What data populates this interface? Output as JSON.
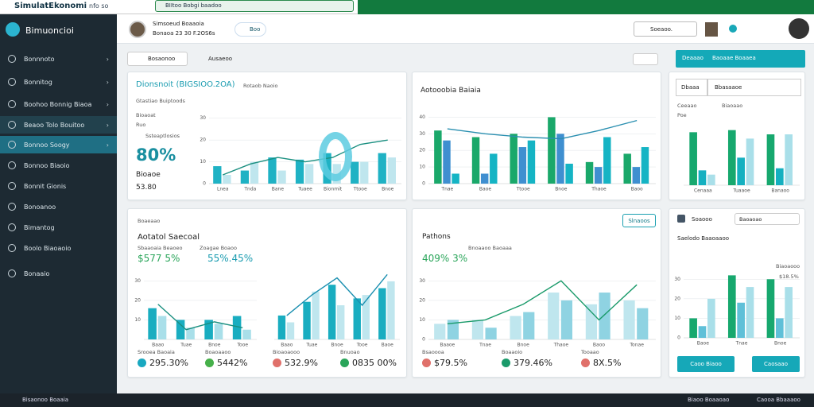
{
  "browser": {
    "title": "SimulatEkonomi",
    "extra": "nfo so",
    "tab": "BIItoo Bobgi baadoo"
  },
  "sidebar": {
    "logo": "Bimuoncioi",
    "items": [
      "Bonnnoto",
      "Bonnitog",
      "Boohoo Bonnig Biaoa",
      "Beaoo Tolo Bouitoo",
      "Bonnoo Soogy",
      "Bonnoo Biaoio",
      "Bonnit Gionis",
      "Bonoanoo",
      "Bimantog",
      "Boolo Biaoaoio",
      "Bonaaio"
    ],
    "footer": "Bisaonoo Boaaia"
  },
  "header": {
    "name": "Simsoeud Boaaoia",
    "sub": "Bonaoa 23 30 F.2OS6s",
    "search": "Boo",
    "search2": "Soeaoo."
  },
  "filter": {
    "search": "Bosaonoo",
    "label": "Ausaeoo"
  },
  "card1": {
    "title": "Dionsnoit (BIGSIOO.2OA)",
    "subtitle": "Rotaob Naoio",
    "l1": "Gtastiao Buiptoods",
    "l2": "Bioaoat",
    "l3": "Ruo",
    "l4": "Ssteaptlosios",
    "big": "80%",
    "l5": "Bioaoe",
    "l6": "53.80",
    "chart": {
      "ylim": [
        0,
        35
      ],
      "yticks": [
        0,
        10,
        20,
        30
      ],
      "categories": [
        "Lnea",
        "Tnda",
        "Bane",
        "Tuaee",
        "Bionmit",
        "Ttooe",
        "Bnoe"
      ],
      "series": [
        {
          "color": "#1fb2c4",
          "values": [
            8,
            6,
            12,
            11,
            14,
            10,
            14
          ]
        },
        {
          "color": "#bfe6ee",
          "values": [
            4,
            10,
            6,
            9,
            9,
            10,
            12
          ]
        }
      ],
      "line": {
        "color": "#1a8f80",
        "values": [
          4,
          9,
          12,
          10,
          12,
          18,
          20
        ]
      }
    }
  },
  "card2": {
    "title": "Aotooobia Baiaia",
    "chart": {
      "ylim": [
        0,
        45
      ],
      "yticks": [
        0,
        10,
        20,
        30,
        40
      ],
      "categories": [
        "Tnae",
        "Baoe",
        "Ttooe",
        "Bnoe",
        "Thaoe",
        "Baoo"
      ],
      "series": [
        {
          "color": "#1aa86a",
          "values": [
            32,
            28,
            30,
            40,
            13,
            18
          ]
        },
        {
          "color": "#3f8fd0",
          "values": [
            26,
            6,
            22,
            30,
            10,
            10
          ]
        },
        {
          "color": "#15b4c4",
          "values": [
            6,
            18,
            26,
            12,
            28,
            22
          ]
        }
      ],
      "line": {
        "color": "#2a8fb0",
        "values": [
          33,
          30,
          28,
          27,
          32,
          38
        ]
      }
    }
  },
  "card3": {
    "header": "Deaaao",
    "header2": "Baoaae Boaaea",
    "sel1": "Dbaaa",
    "sel2": "Bbasaaoe",
    "l1": "Ceeaao",
    "l2": "Biaoaao",
    "l3": "Poe",
    "chart": {
      "ylim": [
        0,
        30
      ],
      "yticks": [],
      "categories": [
        "Cenaaa",
        "Tuaaoe",
        "Banaoo"
      ],
      "series": [
        {
          "color": "#17a86e",
          "values": [
            25,
            26,
            24
          ]
        },
        {
          "color": "#14b0c0",
          "values": [
            7,
            13,
            8
          ]
        },
        {
          "color": "#a9dfe9",
          "values": [
            5,
            22,
            24
          ]
        }
      ]
    }
  },
  "card4": {
    "tag": "Boaeaao",
    "title": "Aotatol Saecoal",
    "sub1": "Sbaaoaia Beaoeo",
    "sub2": "Zoagae Boaoo",
    "v1": "$577 5%",
    "v2": "55%.45%",
    "chart1": {
      "ylim": [
        0,
        35
      ],
      "yticks": [
        10,
        20,
        30
      ],
      "categories": [
        "Baao",
        "Tuae",
        "Bnoe",
        "Tooe"
      ],
      "series": [
        {
          "color": "#19adc0",
          "values": [
            16,
            10,
            10,
            12
          ]
        },
        {
          "color": "#a9dfe9",
          "values": [
            12,
            6,
            8,
            5
          ]
        }
      ],
      "line": {
        "color": "#1a8f80",
        "values": [
          18,
          5,
          9,
          6
        ]
      }
    },
    "chart2": {
      "ylim": [
        0,
        40
      ],
      "yticks": [],
      "categories": [
        "Baao",
        "Tuae",
        "Bnoe",
        "Tooe",
        "Baoe"
      ],
      "series": [
        {
          "color": "#19adc0",
          "values": [
            14,
            22,
            32,
            24,
            30
          ]
        },
        {
          "color": "#bfe6ee",
          "values": [
            10,
            28,
            20,
            26,
            34
          ]
        }
      ],
      "line": {
        "color": "#1a8fb0",
        "values": [
          14,
          26,
          36,
          20,
          38
        ]
      }
    },
    "stats": [
      {
        "label": "Srooea Baoaia",
        "value": "295.30%",
        "color": "#19a8c0"
      },
      {
        "label": "Boaoaaoo",
        "value": "5442%",
        "color": "#46b04a"
      },
      {
        "label": "Bioaoaooo",
        "value": "532.9%",
        "color": "#e0706a"
      },
      {
        "label": "Bnuoao",
        "value": "0835 00%",
        "color": "#2aa55a"
      }
    ]
  },
  "card5": {
    "title": "Pathons",
    "button": "Slnaoos",
    "v1": "409% 3%",
    "sub": "Bnoaaoo Baoaaa",
    "chart": {
      "ylim": [
        0,
        35
      ],
      "yticks": [
        0,
        10,
        20,
        30
      ],
      "categories": [
        "Baaoe",
        "Tnae",
        "Bnoe",
        "Thaoe",
        "Baoo",
        "Tonae"
      ],
      "series": [
        {
          "color": "#bfe6ee",
          "values": [
            8,
            10,
            12,
            24,
            18,
            20
          ]
        },
        {
          "color": "#8fd3e2",
          "values": [
            10,
            6,
            14,
            20,
            24,
            16
          ]
        }
      ],
      "line": {
        "color": "#1a9a6a",
        "values": [
          8,
          10,
          18,
          30,
          10,
          28
        ]
      }
    },
    "stats": [
      {
        "label": "Bsaoooa",
        "value": "$79.5%",
        "color": "#e0706a"
      },
      {
        "label": "Boaaoio",
        "value": "379.46%",
        "color": "#1a9a6a"
      },
      {
        "label": "Tooaao",
        "value": "8X.5%",
        "color": "#e0706a"
      }
    ]
  },
  "card6": {
    "title": "Soaooo",
    "search": "Baoaoao",
    "sub": "Saelodo Baaoaaoo",
    "l1": "Biaoaooo",
    "l2": "$18.5%",
    "b1": "Caoo Biaoo",
    "b2": "Caosaao",
    "chart": {
      "ylim": [
        0,
        35
      ],
      "yticks": [
        0,
        10,
        20,
        30
      ],
      "categories": [
        "Baoe",
        "Tnae",
        "Bnoe"
      ],
      "series": [
        {
          "color": "#17a86e",
          "values": [
            10,
            32,
            30
          ]
        },
        {
          "color": "#5fc0d8",
          "values": [
            6,
            18,
            10
          ]
        },
        {
          "color": "#a9dfe9",
          "values": [
            20,
            26,
            26
          ]
        }
      ]
    }
  },
  "footer": {
    "left": "Bisaonoo Boaaia",
    "r1": "Biaoo Boaaoao",
    "r2": "Caooa Bbaaaoo"
  }
}
